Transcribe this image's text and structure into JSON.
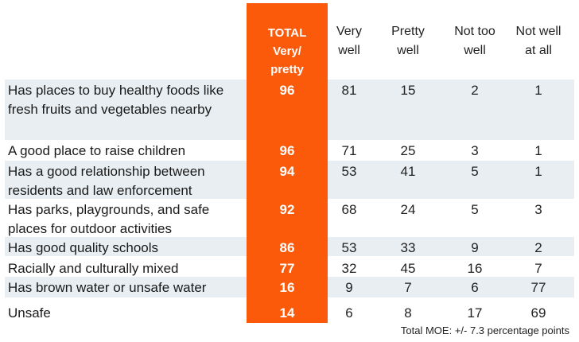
{
  "chart_data": {
    "type": "table",
    "columns": {
      "total": "TOTAL",
      "total_sub": "Very/ pretty",
      "very_well": "Very well",
      "pretty_well": "Pretty well",
      "not_too_well": "Not too well",
      "not_well_at_all": "Not well at all"
    },
    "rows": [
      {
        "label": "Has places to buy healthy foods like fresh fruits and vegetables nearby",
        "total": 96,
        "very_well": 81,
        "pretty_well": 15,
        "not_too_well": 2,
        "not_well_at_all": 1
      },
      {
        "label": "A good place to raise children",
        "total": 96,
        "very_well": 71,
        "pretty_well": 25,
        "not_too_well": 3,
        "not_well_at_all": 1
      },
      {
        "label": "Has a good relationship between residents and law enforcement",
        "total": 94,
        "very_well": 53,
        "pretty_well": 41,
        "not_too_well": 5,
        "not_well_at_all": 1
      },
      {
        "label": "Has parks, playgrounds, and safe places for outdoor activities",
        "total": 92,
        "very_well": 68,
        "pretty_well": 24,
        "not_too_well": 5,
        "not_well_at_all": 3
      },
      {
        "label": "Has good quality schools",
        "total": 86,
        "very_well": 53,
        "pretty_well": 33,
        "not_too_well": 9,
        "not_well_at_all": 2
      },
      {
        "label": "Racially and culturally mixed",
        "total": 77,
        "very_well": 32,
        "pretty_well": 45,
        "not_too_well": 16,
        "not_well_at_all": 7
      },
      {
        "label": "Has brown water or unsafe water",
        "total": 16,
        "very_well": 9,
        "pretty_well": 7,
        "not_too_well": 6,
        "not_well_at_all": 77
      },
      {
        "label": "Unsafe",
        "total": 14,
        "very_well": 6,
        "pretty_well": 8,
        "not_too_well": 17,
        "not_well_at_all": 69
      }
    ],
    "footnote": "Total MOE: +/- 7.3 percentage points",
    "colors": {
      "total_column": "#fa5a0a",
      "row_band": "#e8eef2"
    }
  }
}
